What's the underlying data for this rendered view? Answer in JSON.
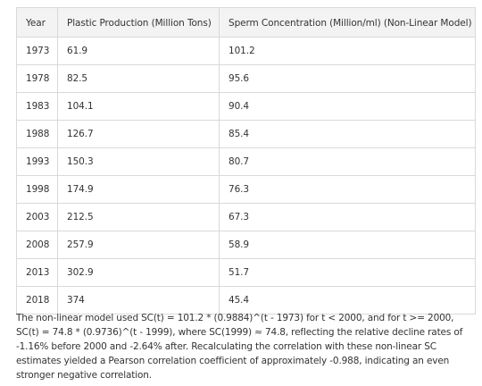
{
  "table": {
    "headers": [
      "Year",
      "Plastic Production (Million Tons)",
      "Sperm Concentration (Million/ml) (Non-Linear Model)"
    ],
    "rows": [
      [
        "1973",
        "61.9",
        "101.2"
      ],
      [
        "1978",
        "82.5",
        "95.6"
      ],
      [
        "1983",
        "104.1",
        "90.4"
      ],
      [
        "1988",
        "126.7",
        "85.4"
      ],
      [
        "1993",
        "150.3",
        "80.7"
      ],
      [
        "1998",
        "174.9",
        "76.3"
      ],
      [
        "2003",
        "212.5",
        "67.3"
      ],
      [
        "2008",
        "257.9",
        "58.9"
      ],
      [
        "2013",
        "302.9",
        "51.7"
      ],
      [
        "2018",
        "374",
        "45.4"
      ]
    ]
  },
  "note": {
    "text": "The non-linear model used SC(t) = 101.2 * (0.9884)^(t - 1973) for t < 2000, and for t >= 2000, SC(t) = 74.8 * (0.9736)^(t - 1999), where SC(1999) ≈ 74.8, reflecting the relative decline rates of -1.16% before 2000 and -2.64% after. Recalculating the correlation with these non-linear SC estimates yielded a Pearson correlation coefficient of approximately -0.988, indicating an even stronger negative correlation."
  }
}
